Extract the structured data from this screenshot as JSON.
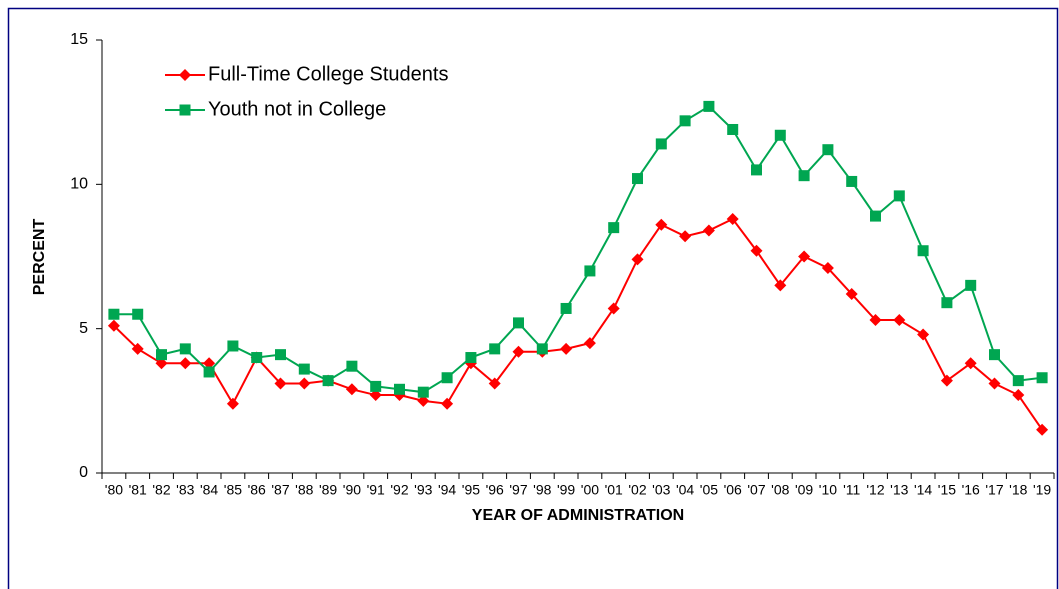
{
  "chart_data": {
    "type": "line",
    "x_label": "YEAR OF ADMINISTRATION",
    "y_label": "PERCENT",
    "categories": [
      "'80",
      "'81",
      "'82",
      "'83",
      "'84",
      "'85",
      "'86",
      "'87",
      "'88",
      "'89",
      "'90",
      "'91",
      "'92",
      "'93",
      "'94",
      "'95",
      "'96",
      "'97",
      "'98",
      "'99",
      "'00",
      "'01",
      "'02",
      "'03",
      "'04",
      "'05",
      "'06",
      "'07",
      "'08",
      "'09",
      "'10",
      "'11",
      "'12",
      "'13",
      "'14",
      "'15",
      "'16",
      "'17",
      "'18",
      "'19"
    ],
    "series": [
      {
        "name": "Full-Time College Students",
        "color": "#ff0000",
        "marker": "diamond",
        "values": [
          5.1,
          4.3,
          3.8,
          3.8,
          3.8,
          2.4,
          4.0,
          3.1,
          3.1,
          3.2,
          2.9,
          2.7,
          2.7,
          2.5,
          2.4,
          3.8,
          3.1,
          4.2,
          4.2,
          4.3,
          4.5,
          5.7,
          7.4,
          8.6,
          8.2,
          8.4,
          8.8,
          7.7,
          6.5,
          7.5,
          7.1,
          6.2,
          5.3,
          5.3,
          4.8,
          3.2,
          3.8,
          3.1,
          2.7,
          1.5
        ]
      },
      {
        "name": "Youth not in College",
        "color": "#00a651",
        "marker": "square",
        "values": [
          5.5,
          5.5,
          4.1,
          4.3,
          3.5,
          4.4,
          4.0,
          4.1,
          3.6,
          3.2,
          3.7,
          3.0,
          2.9,
          2.8,
          3.3,
          4.0,
          4.3,
          5.2,
          4.3,
          5.7,
          7.0,
          8.5,
          10.2,
          11.4,
          12.2,
          12.7,
          11.9,
          10.5,
          11.7,
          10.3,
          11.2,
          10.1,
          8.9,
          9.6,
          7.7,
          5.9,
          6.5,
          4.1,
          3.2,
          3.3
        ]
      }
    ],
    "ylim": [
      0,
      15
    ],
    "yticks": [
      0,
      5,
      10,
      15
    ],
    "legend": "upper left"
  }
}
